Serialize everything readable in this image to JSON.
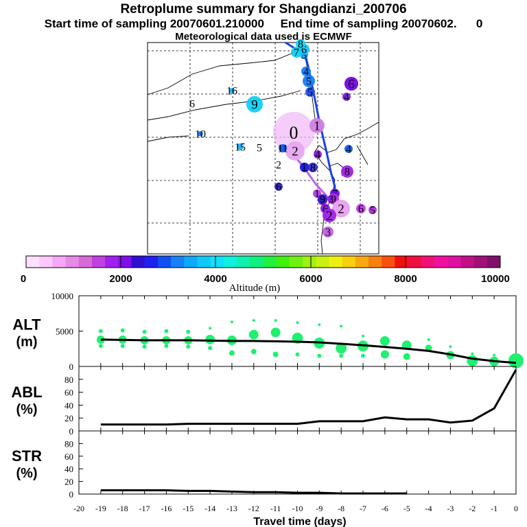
{
  "header": {
    "title": "Retroplume summary for Shangdianzi_200706",
    "start_label": "Start time of sampling 20070601.210000",
    "end_label": "End time of sampling 20070602.",
    "end_tail": "0",
    "met_label": "Meteorological data used is ECMWF"
  },
  "colorbar": {
    "title": "Altitude  (m)",
    "tick_labels": [
      "0",
      "2000",
      "4000",
      "6000",
      "8000",
      "10000"
    ],
    "colors": [
      "#ffe0ff",
      "#ffc8ff",
      "#f5a8f5",
      "#e88ae8",
      "#d86ad8",
      "#c040e0",
      "#a020f0",
      "#8010e8",
      "#3010d0",
      "#2020f0",
      "#1050f0",
      "#1880f8",
      "#10a8f8",
      "#10c8f8",
      "#10e0f8",
      "#10f0e0",
      "#10f0b0",
      "#10f080",
      "#20f040",
      "#40f010",
      "#70f010",
      "#a0f010",
      "#c8f010",
      "#f0f010",
      "#f8d010",
      "#f8a810",
      "#f88010",
      "#f85010",
      "#f01010",
      "#f01040",
      "#f01078",
      "#f010a0",
      "#e010a0",
      "#c01088",
      "#a01078",
      "#801068"
    ]
  },
  "map": {
    "markers": [
      {
        "label": "0",
        "color": "#f0b8f8",
        "r": 30
      },
      {
        "label": "1",
        "color": "#d080e0",
        "r": 11
      },
      {
        "label": "1",
        "color": "#1060f0",
        "r": 5
      },
      {
        "label": "2",
        "color": "#e8a8f0",
        "r": 14
      },
      {
        "label": "3",
        "color": "#3010e0",
        "r": 7
      },
      {
        "label": "4",
        "color": "#9018e8",
        "r": 6
      },
      {
        "label": "5",
        "color": "#2050f0",
        "r": 7
      },
      {
        "label": "6",
        "color": "#9018e8",
        "r": 7
      },
      {
        "label": "7",
        "color": "#7010e0",
        "r": 7
      },
      {
        "label": "8",
        "color": "#a020e8",
        "r": 9
      },
      {
        "label": "9",
        "color": "#b030e0",
        "r": 8
      },
      {
        "label": "1",
        "color": "#b040e0",
        "r": 6
      },
      {
        "label": "1",
        "color": "#a020e0",
        "r": 7
      },
      {
        "label": "2",
        "color": "#e8a0f0",
        "r": 13
      },
      {
        "label": "6",
        "color": "#c040e0",
        "r": 7
      },
      {
        "label": "5",
        "color": "#b030e0",
        "r": 6
      },
      {
        "label": "2",
        "color": "#a020e8",
        "r": 10
      },
      {
        "label": "3",
        "color": "#c060e0",
        "r": 8
      },
      {
        "label": "3",
        "color": "#9020e8",
        "r": 5
      },
      {
        "label": "6",
        "color": "#3020d0",
        "r": 6
      },
      {
        "label": "4",
        "color": "#1060f0",
        "r": 6
      },
      {
        "label": "5",
        "color": "#1880f8",
        "r": 9
      },
      {
        "label": "4",
        "color": "#1080f8",
        "r": 7
      },
      {
        "label": "5",
        "color": "#20a0f8",
        "r": 6
      },
      {
        "label": "6",
        "color": "#20c0f8",
        "r": 8
      },
      {
        "label": "7",
        "color": "#10d0f8",
        "r": 8
      },
      {
        "label": "8",
        "color": "#10d8f8",
        "r": 7
      },
      {
        "label": "7",
        "color": "#3030e0",
        "r": 10
      },
      {
        "label": "6",
        "color": "#8010e0",
        "r": 10
      },
      {
        "label": "4",
        "color": "#8020e0",
        "r": 6
      },
      {
        "label": "9",
        "color": "#10d0f8",
        "r": 12
      },
      {
        "label": "16",
        "color": "#20b0f8",
        "r": 4
      },
      {
        "label": "6",
        "color": "#ffffff",
        "r": 0
      },
      {
        "label": "10",
        "color": "#1880f8",
        "r": 4
      },
      {
        "label": "15",
        "color": "#20b0f8",
        "r": 5
      },
      {
        "label": "5",
        "color": "#ffffff",
        "r": 0
      },
      {
        "label": "11",
        "color": "#1060f0",
        "r": 6
      },
      {
        "label": "2",
        "color": "#ffffff",
        "r": 0
      },
      {
        "label": "1",
        "color": "#2020f0",
        "r": 6
      },
      {
        "label": "8",
        "color": "#3030d8",
        "r": 7
      },
      {
        "label": "9",
        "color": "#3020d0",
        "r": 7
      }
    ]
  },
  "chart_data": [
    {
      "type": "scatter",
      "panel": "ALT",
      "ylabel": "ALT",
      "yunit": "(m)",
      "ylim": [
        0,
        10000
      ],
      "yticks": [
        "0",
        "5000",
        "10000"
      ],
      "xlim": [
        -20,
        0
      ],
      "line_x": [
        -19,
        -18,
        -17,
        -16,
        -15,
        -14,
        -13,
        -12,
        -11,
        -10,
        -9,
        -8,
        -7,
        -6,
        -5,
        -4,
        -3,
        -2,
        -1,
        0
      ],
      "line_y": [
        3800,
        3750,
        3700,
        3700,
        3700,
        3650,
        3600,
        3600,
        3550,
        3500,
        3400,
        3200,
        3000,
        2750,
        2500,
        2200,
        1700,
        1100,
        750,
        500
      ],
      "scatter": [
        {
          "x": -19,
          "y": 3800,
          "s": 6
        },
        {
          "x": -19,
          "y": 5000,
          "s": 3
        },
        {
          "x": -19,
          "y": 2900,
          "s": 3
        },
        {
          "x": -18,
          "y": 3800,
          "s": 6
        },
        {
          "x": -18,
          "y": 5100,
          "s": 3
        },
        {
          "x": -18,
          "y": 2900,
          "s": 3
        },
        {
          "x": -17,
          "y": 3700,
          "s": 6
        },
        {
          "x": -17,
          "y": 4900,
          "s": 3
        },
        {
          "x": -17,
          "y": 2800,
          "s": 3
        },
        {
          "x": -16,
          "y": 3700,
          "s": 6
        },
        {
          "x": -16,
          "y": 5000,
          "s": 3
        },
        {
          "x": -16,
          "y": 2900,
          "s": 3
        },
        {
          "x": -15,
          "y": 3700,
          "s": 6
        },
        {
          "x": -15,
          "y": 4900,
          "s": 3
        },
        {
          "x": -15,
          "y": 2800,
          "s": 3
        },
        {
          "x": -14,
          "y": 3800,
          "s": 7
        },
        {
          "x": -14,
          "y": 5400,
          "s": 2
        },
        {
          "x": -14,
          "y": 2600,
          "s": 3
        },
        {
          "x": -13,
          "y": 3700,
          "s": 7
        },
        {
          "x": -13,
          "y": 6300,
          "s": 2
        },
        {
          "x": -13,
          "y": 1900,
          "s": 4
        },
        {
          "x": -12,
          "y": 4500,
          "s": 7
        },
        {
          "x": -12,
          "y": 6500,
          "s": 2
        },
        {
          "x": -12,
          "y": 2100,
          "s": 4
        },
        {
          "x": -11,
          "y": 4800,
          "s": 7
        },
        {
          "x": -11,
          "y": 6500,
          "s": 2
        },
        {
          "x": -11,
          "y": 1700,
          "s": 4
        },
        {
          "x": -10,
          "y": 4000,
          "s": 8
        },
        {
          "x": -10,
          "y": 6200,
          "s": 2
        },
        {
          "x": -10,
          "y": 1700,
          "s": 3
        },
        {
          "x": -9,
          "y": 3300,
          "s": 8
        },
        {
          "x": -9,
          "y": 5900,
          "s": 2
        },
        {
          "x": -9,
          "y": 1500,
          "s": 3
        },
        {
          "x": -8,
          "y": 2600,
          "s": 8
        },
        {
          "x": -8,
          "y": 5700,
          "s": 2
        },
        {
          "x": -8,
          "y": 1500,
          "s": 3
        },
        {
          "x": -7,
          "y": 2900,
          "s": 8
        },
        {
          "x": -7,
          "y": 4300,
          "s": 2
        },
        {
          "x": -7,
          "y": 1500,
          "s": 3
        },
        {
          "x": -6,
          "y": 3600,
          "s": 7
        },
        {
          "x": -6,
          "y": 1700,
          "s": 6
        },
        {
          "x": -5,
          "y": 3000,
          "s": 7
        },
        {
          "x": -5,
          "y": 1400,
          "s": 5
        },
        {
          "x": -4,
          "y": 2600,
          "s": 5
        },
        {
          "x": -4,
          "y": 3800,
          "s": 2
        },
        {
          "x": -3,
          "y": 1600,
          "s": 6
        },
        {
          "x": -3,
          "y": 2800,
          "s": 2
        },
        {
          "x": -2,
          "y": 800,
          "s": 8
        },
        {
          "x": -2,
          "y": 1800,
          "s": 2
        },
        {
          "x": -1,
          "y": 700,
          "s": 7
        },
        {
          "x": -1,
          "y": 1600,
          "s": 2
        },
        {
          "x": 0,
          "y": 800,
          "s": 11
        }
      ]
    },
    {
      "type": "line",
      "panel": "ABL",
      "ylabel": "ABL",
      "yunit": "(%)",
      "ylim": [
        0,
        100
      ],
      "yticks": [
        "0",
        "20",
        "40",
        "60",
        "80"
      ],
      "x": [
        -19,
        -18,
        -17,
        -16,
        -15,
        -14,
        -13,
        -12,
        -11,
        -10,
        -9,
        -8,
        -7,
        -6,
        -5,
        -4,
        -3,
        -2,
        -1,
        0
      ],
      "values": [
        10,
        10,
        10,
        10,
        11,
        11,
        11,
        11,
        11,
        11,
        15,
        15,
        15,
        21,
        18,
        18,
        13,
        16,
        35,
        95
      ]
    },
    {
      "type": "line",
      "panel": "STR",
      "ylabel": "STR",
      "yunit": "(%)",
      "ylim": [
        0,
        100
      ],
      "yticks": [
        "0",
        "20",
        "40",
        "60",
        "80"
      ],
      "x": [
        -19,
        -18,
        -17,
        -16,
        -15,
        -14,
        -13,
        -12,
        -11,
        -10,
        -9,
        -8,
        -7,
        -6,
        -5
      ],
      "values": [
        6,
        6,
        6,
        6,
        5,
        5,
        4,
        3,
        3,
        2,
        2,
        1,
        1,
        1,
        1
      ]
    }
  ],
  "xaxis": {
    "label": "Travel time (days)",
    "ticks": [
      "-20",
      "-19",
      "-18",
      "-17",
      "-16",
      "-15",
      "-14",
      "-13",
      "-12",
      "-11",
      "-10",
      "-9",
      "-8",
      "-7",
      "-6",
      "-5",
      "-4",
      "-3",
      "-2",
      "-1",
      "0"
    ]
  }
}
